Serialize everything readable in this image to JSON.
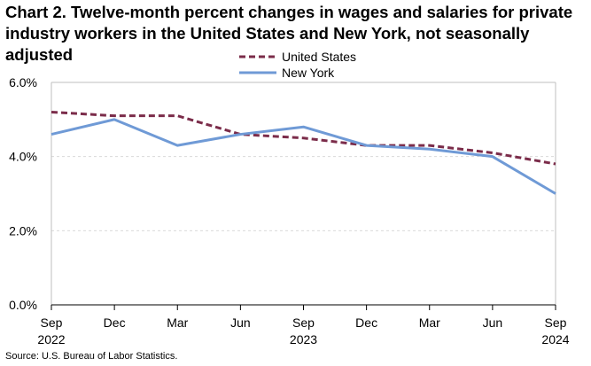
{
  "chart_data": {
    "type": "line",
    "title": "Chart 2. Twelve-month percent changes in wages and salaries for private industry workers in the United States and New York, not seasonally adjusted",
    "categories": [
      "Sep",
      "Dec",
      "Mar",
      "Jun",
      "Sep",
      "Dec",
      "Mar",
      "Jun",
      "Sep"
    ],
    "year_labels": [
      "2022",
      "",
      "",
      "",
      "2023",
      "",
      "",
      "",
      "2024"
    ],
    "ylim": [
      0,
      6
    ],
    "yticks": [
      "0.0%",
      "2.0%",
      "4.0%",
      "6.0%"
    ],
    "grid": true,
    "legend": "top-center",
    "series": [
      {
        "name": "United States",
        "color": "#7b2c4a",
        "style": "dashed",
        "values": [
          5.2,
          5.1,
          5.1,
          4.6,
          4.5,
          4.3,
          4.3,
          4.1,
          3.8
        ]
      },
      {
        "name": "New York",
        "color": "#6f9ad6",
        "style": "solid",
        "values": [
          4.6,
          5.0,
          4.3,
          4.6,
          4.8,
          4.3,
          4.2,
          4.0,
          3.0
        ]
      }
    ]
  },
  "source": "Source: U.S. Bureau of Labor Statistics."
}
